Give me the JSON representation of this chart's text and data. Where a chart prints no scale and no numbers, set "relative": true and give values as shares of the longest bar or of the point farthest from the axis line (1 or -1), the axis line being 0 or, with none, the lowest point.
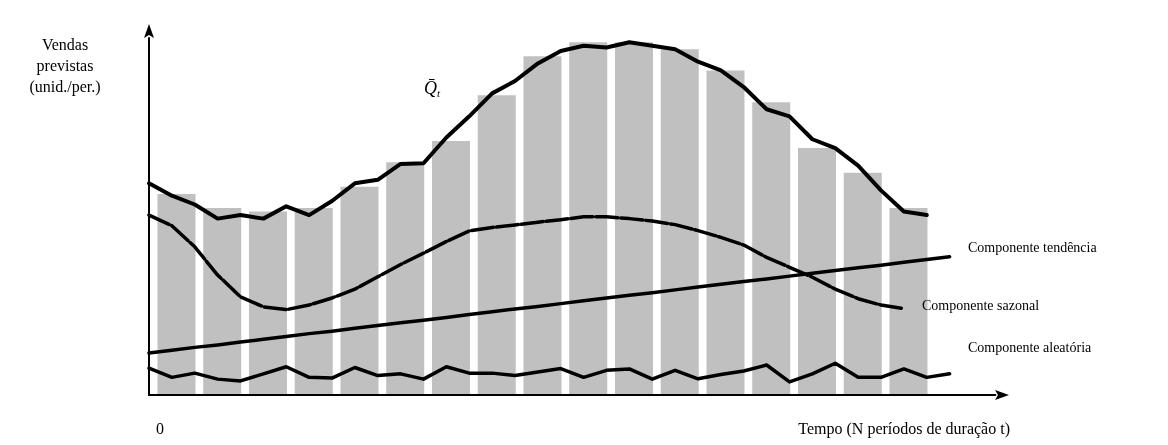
{
  "chart_data": [
    {
      "type": "bar",
      "relative": true,
      "categories": [
        null,
        null,
        null,
        null,
        null,
        null,
        null,
        null,
        null,
        null,
        null,
        null,
        null,
        null,
        null,
        null,
        null
      ],
      "color": "#c0c0c0",
      "values": [
        0.57,
        0.53,
        0.52,
        0.53,
        0.59,
        0.66,
        0.72,
        0.85,
        0.96,
        1,
        1,
        0.98,
        0.92,
        0.83,
        0.7,
        0.63,
        0.53
      ]
    },
    {
      "type": "line",
      "relative": true,
      "ylabel": "Vendas\nprevistas\n(unid./per.)",
      "xlabel": "Tempo (N períodos de duração t)",
      "annotations": [
        "0"
      ],
      "marker": "none",
      "categories": [
        null,
        null,
        null,
        null,
        null,
        null,
        null,
        null,
        null,
        null,
        null,
        null,
        null,
        null,
        null,
        null,
        null,
        null,
        null,
        null,
        null,
        null,
        null,
        null,
        null,
        null,
        null,
        null,
        null,
        null,
        null,
        null,
        null,
        null,
        null,
        null,
        null,
        null
      ],
      "series": [
        {
          "name": "Q̄$_{t}$",
          "color": "#000000",
          "values": [
            0.6,
            0.565,
            0.54,
            0.5,
            0.51,
            0.5,
            0.535,
            0.51,
            0.55,
            0.6,
            0.61,
            0.655,
            0.657,
            0.73,
            0.79,
            0.855,
            0.89,
            0.94,
            0.975,
            0.99,
            0.985,
            1,
            0.99,
            0.98,
            0.945,
            0.92,
            0.873,
            0.81,
            0.79,
            0.725,
            0.7,
            0.65,
            0.58,
            0.52,
            0.51,
            null,
            null,
            null
          ]
        },
        {
          "name": "Componente tendência",
          "color": "#000000",
          "values": [
            0.119,
            0.127,
            0.135,
            0.142,
            0.15,
            0.158,
            0.166,
            0.174,
            0.181,
            0.189,
            0.197,
            0.205,
            0.212,
            0.22,
            0.228,
            0.236,
            0.244,
            0.251,
            0.259,
            0.267,
            0.275,
            0.283,
            0.29,
            0.298,
            0.306,
            0.314,
            0.322,
            0.329,
            0.337,
            0.345,
            0.353,
            0.361,
            0.368,
            0.376,
            0.384,
            0.392,
            null,
            null
          ]
        },
        {
          "name": "Componente sazonal",
          "color": "#000000",
          "line_style": "dashed",
          "values": [
            0.51,
            0.48,
            0.42,
            0.34,
            0.278,
            0.25,
            0.242,
            0.255,
            0.275,
            0.3,
            0.335,
            0.37,
            0.402,
            0.435,
            0.465,
            0.475,
            0.482,
            0.49,
            0.497,
            0.505,
            0.505,
            0.5,
            0.493,
            0.483,
            0.466,
            0.447,
            0.425,
            0.39,
            0.362,
            0.334,
            0.3,
            0.273,
            0.255,
            0.245,
            null,
            null,
            null,
            null
          ]
        },
        {
          "name": "Componente aleatória",
          "color": "#000000",
          "values": [
            0.076,
            0.05,
            0.062,
            0.045,
            0.04,
            0.06,
            0.08,
            0.05,
            0.048,
            0.078,
            0.055,
            0.06,
            0.045,
            0.08,
            0.062,
            0.062,
            0.055,
            0.065,
            0.075,
            0.05,
            0.07,
            0.074,
            0.045,
            0.07,
            0.046,
            0.058,
            0.068,
            0.085,
            0.037,
            0.06,
            0.09,
            0.05,
            0.05,
            0.074,
            0.05,
            0.06,
            null,
            null
          ]
        }
      ]
    }
  ]
}
